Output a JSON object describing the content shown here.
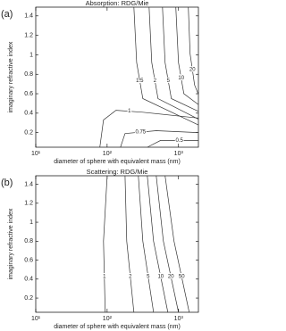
{
  "chart_data": [
    {
      "type": "contour",
      "panel_label": "(a)",
      "title": "Absorption: RDG/Mie",
      "xlabel": "diameter of sphere with equivalent mass (nm)",
      "ylabel": "imaginary refractive index",
      "xscale": "log",
      "xlim": [
        10,
        1900
      ],
      "ylim": [
        0.05,
        1.49
      ],
      "xticks": [
        {
          "value": 10,
          "label": "10¹"
        },
        {
          "value": 100,
          "label": "10²"
        },
        {
          "value": 1000,
          "label": "10³"
        }
      ],
      "yticks": [
        0.2,
        0.4,
        0.6,
        0.8,
        1,
        1.2,
        1.4
      ],
      "color": "#333333",
      "contours": [
        {
          "level": 1.5,
          "x": [
            237,
            259,
            316,
            1884
          ],
          "y": [
            1.49,
            0.92,
            0.55,
            0.28
          ]
        },
        {
          "level": 2,
          "x": [
            387,
            422,
            516,
            1884
          ],
          "y": [
            1.49,
            0.92,
            0.55,
            0.34
          ]
        },
        {
          "level": 5,
          "x": [
            596,
            649,
            794,
            1884
          ],
          "y": [
            1.49,
            0.92,
            0.55,
            0.42
          ]
        },
        {
          "level": 10,
          "x": [
            917,
            1000,
            1189,
            1884
          ],
          "y": [
            1.49,
            0.92,
            0.6,
            0.49
          ]
        },
        {
          "level": 20,
          "x": [
            1373,
            1454,
            1679,
            1884
          ],
          "y": [
            1.49,
            1.01,
            0.69,
            0.6
          ]
        },
        {
          "level": 1,
          "x": [
            79,
            89,
            133,
            316,
            1884
          ],
          "y": [
            0.05,
            0.33,
            0.43,
            0.41,
            0.35
          ]
        },
        {
          "level": 0.75,
          "x": [
            154,
            178,
            487,
            1884
          ],
          "y": [
            0.05,
            0.19,
            0.22,
            0.2
          ]
        },
        {
          "level": 0.5,
          "x": [
            365,
            562,
            1884
          ],
          "y": [
            0.05,
            0.12,
            0.12
          ]
        }
      ]
    },
    {
      "type": "contour",
      "panel_label": "(b)",
      "title": "Scattering: RDG/Mie",
      "xlabel": "diameter of sphere with equivalent mass (nm)",
      "ylabel": "imaginary refractive index",
      "xscale": "log",
      "xlim": [
        10,
        1900
      ],
      "ylim": [
        0.05,
        1.49
      ],
      "xticks": [
        {
          "value": 10,
          "label": "10¹"
        },
        {
          "value": 100,
          "label": "10²"
        },
        {
          "value": 1000,
          "label": "10³"
        }
      ],
      "yticks": [
        0.2,
        0.4,
        0.6,
        0.8,
        1,
        1.2,
        1.4
      ],
      "color": "#333333",
      "contours": [
        {
          "level": 1,
          "x": [
            100,
            89,
            94
          ],
          "y": [
            1.49,
            0.8,
            0.05
          ]
        },
        {
          "level": 2,
          "x": [
            178,
            188,
            237
          ],
          "y": [
            1.49,
            0.8,
            0.05
          ]
        },
        {
          "level": 5,
          "x": [
            274,
            316,
            447
          ],
          "y": [
            1.49,
            0.8,
            0.05
          ]
        },
        {
          "level": 10,
          "x": [
            365,
            447,
            708
          ],
          "y": [
            1.49,
            0.8,
            0.05
          ]
        },
        {
          "level": 20,
          "x": [
            487,
            613,
            1000
          ],
          "y": [
            1.49,
            0.8,
            0.05
          ]
        },
        {
          "level": 50,
          "x": [
            649,
            866,
            1413
          ],
          "y": [
            1.49,
            0.8,
            0.05
          ]
        }
      ]
    }
  ]
}
